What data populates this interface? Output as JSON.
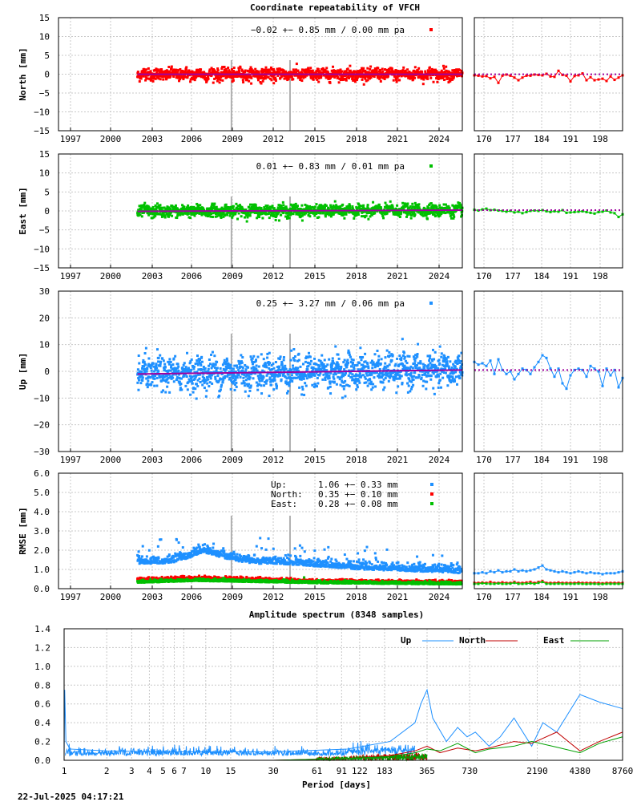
{
  "figure": {
    "title": "Coordinate repeatability of VFCH",
    "timestamp": "22-Jul-2025 04:17:21"
  },
  "colors": {
    "north": "#ff0000",
    "east": "#00c000",
    "up": "#1e90ff",
    "model": "#a000a0",
    "event": "#b0b0b0",
    "grid": "#c8c8c8"
  },
  "chart_data": [
    {
      "id": "north",
      "type": "scatter",
      "title": "Coordinate repeatability of VFCH",
      "ylabel": "North [mm]",
      "xlabel": "",
      "ylim": [
        -15,
        15
      ],
      "yticks": [
        "15",
        "10",
        "5",
        "0",
        "−5",
        "−10",
        "−15"
      ],
      "xticks": [
        "1997",
        "2000",
        "2003",
        "2006",
        "2009",
        "2012",
        "2015",
        "2018",
        "2021",
        "2024"
      ],
      "xlim": [
        1995.9,
        2025.55
      ],
      "legend": "−0.02 +− 0.85 mm /  0.00 mm pa",
      "data_start": 2001.7,
      "data_end": 2025.55,
      "scatter_sd": 0.85,
      "trend": [
        -0.02,
        -0.02
      ],
      "events": [
        2008.6,
        2012.9
      ],
      "zoom": {
        "xticks": [
          "170",
          "177",
          "184",
          "191",
          "198"
        ],
        "day_range": [
          166,
          203
        ],
        "values": [
          -0.3,
          -0.4,
          -0.6,
          -0.5,
          -1.1,
          -0.7,
          -2.3,
          -0.4,
          -0.1,
          -0.4,
          -0.9,
          -1.6,
          -0.9,
          -0.4,
          -0.4,
          -0.1,
          -0.2,
          -0.3,
          0.1,
          -0.6,
          -0.7,
          0.9,
          -0.2,
          -0.4,
          -1.9,
          -0.5,
          -0.3,
          0.2,
          -1.6,
          -0.8,
          -1.6,
          -1.4,
          -1.2,
          -1.8,
          -0.6,
          -1.5,
          -0.9,
          -0.3
        ]
      }
    },
    {
      "id": "east",
      "type": "scatter",
      "ylabel": "East [mm]",
      "xlabel": "",
      "ylim": [
        -15,
        15
      ],
      "yticks": [
        "15",
        "10",
        "5",
        "0",
        "−5",
        "−10",
        "−15"
      ],
      "xticks": [
        "1997",
        "2000",
        "2003",
        "2006",
        "2009",
        "2012",
        "2015",
        "2018",
        "2021",
        "2024"
      ],
      "xlim": [
        1995.9,
        2025.55
      ],
      "legend": "0.01 +− 0.83 mm /  0.01 mm pa",
      "data_start": 2001.7,
      "data_end": 2025.55,
      "scatter_sd": 0.83,
      "trend": [
        -0.1,
        0.2
      ],
      "events": [
        2008.6,
        2012.9
      ],
      "zoom": {
        "xticks": [
          "170",
          "177",
          "184",
          "191",
          "198"
        ],
        "day_range": [
          166,
          203
        ],
        "values": [
          0.3,
          0.1,
          0.4,
          0.6,
          0.2,
          0.3,
          0.1,
          0.0,
          -0.2,
          0.0,
          -0.4,
          -0.2,
          -0.6,
          -0.3,
          0.0,
          0.1,
          0.0,
          0.2,
          -0.1,
          -0.3,
          -0.1,
          -0.2,
          0.2,
          -0.5,
          -0.4,
          -0.3,
          -0.2,
          -0.1,
          -0.3,
          -0.5,
          -0.7,
          -0.3,
          -0.2,
          0.1,
          -0.4,
          -0.6,
          -1.6,
          -0.9
        ]
      }
    },
    {
      "id": "up",
      "type": "scatter",
      "ylabel": "Up [mm]",
      "xlabel": "",
      "ylim": [
        -30,
        30
      ],
      "yticks": [
        "30",
        "20",
        "10",
        "0",
        "−10",
        "−20",
        "−30"
      ],
      "xticks": [
        "1997",
        "2000",
        "2003",
        "2006",
        "2009",
        "2012",
        "2015",
        "2018",
        "2021",
        "2024"
      ],
      "xlim": [
        1995.9,
        2025.55
      ],
      "legend": "0.25 +− 3.27 mm /  0.06 mm pa",
      "data_start": 2001.7,
      "data_end": 2025.55,
      "scatter_sd": 3.27,
      "trend": [
        -1.0,
        0.5
      ],
      "events": [
        2008.6,
        2012.9
      ],
      "zoom": {
        "xticks": [
          "170",
          "177",
          "184",
          "191",
          "198"
        ],
        "day_range": [
          166,
          203
        ],
        "values": [
          3.5,
          2.5,
          3.0,
          2.0,
          4.0,
          -1.0,
          4.5,
          0.5,
          -1.0,
          0.0,
          -3.0,
          -1.0,
          1.0,
          0.5,
          -1.0,
          1.5,
          3.5,
          6.0,
          5.0,
          1.0,
          -2.0,
          1.0,
          -4.5,
          -6.5,
          -1.5,
          0.5,
          1.0,
          0.5,
          -2.0,
          2.0,
          1.0,
          0.0,
          -5.5,
          1.0,
          -1.5,
          0.5,
          -6.0,
          -2.5
        ]
      }
    },
    {
      "id": "rmse",
      "type": "scatter",
      "ylabel": "RMSE [mm]",
      "xlabel": "",
      "ylim": [
        0,
        6
      ],
      "yticks": [
        "6.0",
        "5.0",
        "4.0",
        "3.0",
        "2.0",
        "1.0",
        "0.0"
      ],
      "xticks": [
        "1997",
        "2000",
        "2003",
        "2006",
        "2009",
        "2012",
        "2015",
        "2018",
        "2021",
        "2024"
      ],
      "xlim": [
        1995.9,
        2025.55
      ],
      "events": [
        2008.6,
        2012.9
      ],
      "legend": [
        {
          "name": "Up:",
          "text": "1.06 +− 0.33 mm",
          "color": "#1e90ff"
        },
        {
          "name": "North:",
          "text": "0.35 +− 0.10 mm",
          "color": "#ff0000"
        },
        {
          "name": "East:",
          "text": "0.28 +− 0.08 mm",
          "color": "#00c000"
        }
      ],
      "series": [
        {
          "name": "Up",
          "color": "#1e90ff",
          "x": [
            2001.7,
            2004,
            2005.5,
            2006.5,
            2007.5,
            2008.5,
            2010,
            2012,
            2014,
            2016,
            2018,
            2020,
            2022,
            2024,
            2025.5
          ],
          "y": [
            1.3,
            1.3,
            1.6,
            1.9,
            1.7,
            1.5,
            1.3,
            1.3,
            1.2,
            1.1,
            1.0,
            0.95,
            0.9,
            0.85,
            0.8
          ]
        },
        {
          "name": "North",
          "color": "#ff0000",
          "x": [
            2001.7,
            2006,
            2010,
            2015,
            2020,
            2025.5
          ],
          "y": [
            0.45,
            0.5,
            0.45,
            0.35,
            0.33,
            0.3
          ]
        },
        {
          "name": "East",
          "color": "#00c000",
          "x": [
            2001.7,
            2006,
            2010,
            2015,
            2020,
            2025.5
          ],
          "y": [
            0.3,
            0.4,
            0.35,
            0.28,
            0.25,
            0.22
          ]
        }
      ],
      "zoom": {
        "xticks": [
          "170",
          "177",
          "184",
          "191",
          "198"
        ],
        "day_range": [
          166,
          203
        ],
        "up": [
          0.8,
          0.8,
          0.85,
          0.8,
          0.9,
          0.85,
          0.95,
          0.85,
          0.9,
          0.9,
          1.0,
          0.9,
          0.95,
          0.9,
          0.95,
          1.0,
          1.1,
          1.2,
          1.0,
          0.95,
          0.9,
          0.85,
          0.9,
          0.85,
          0.8,
          0.85,
          0.9,
          0.85,
          0.8,
          0.85,
          0.8,
          0.8,
          0.75,
          0.8,
          0.8,
          0.8,
          0.85,
          0.9
        ],
        "north": [
          0.3,
          0.3,
          0.32,
          0.3,
          0.35,
          0.3,
          0.3,
          0.33,
          0.3,
          0.3,
          0.35,
          0.3,
          0.3,
          0.32,
          0.35,
          0.3,
          0.35,
          0.4,
          0.3,
          0.3,
          0.3,
          0.32,
          0.3,
          0.3,
          0.3,
          0.3,
          0.32,
          0.3,
          0.3,
          0.3,
          0.3,
          0.3,
          0.28,
          0.3,
          0.3,
          0.3,
          0.3,
          0.3
        ],
        "east": [
          0.25,
          0.25,
          0.28,
          0.26,
          0.25,
          0.25,
          0.27,
          0.25,
          0.25,
          0.26,
          0.3,
          0.25,
          0.25,
          0.26,
          0.28,
          0.25,
          0.3,
          0.35,
          0.25,
          0.25,
          0.25,
          0.26,
          0.25,
          0.25,
          0.25,
          0.25,
          0.26,
          0.25,
          0.24,
          0.25,
          0.25,
          0.24,
          0.24,
          0.25,
          0.25,
          0.25,
          0.25,
          0.25
        ]
      }
    },
    {
      "id": "spectrum",
      "type": "line",
      "title": "Amplitude spectrum (8348 samples)",
      "xlabel": "Period [days]",
      "ylabel": "",
      "xscale": "log",
      "xlim": [
        1,
        8760
      ],
      "ylim": [
        0,
        1.4
      ],
      "yticks": [
        "1.4",
        "1.2",
        "1.0",
        "0.8",
        "0.6",
        "0.4",
        "0.2",
        "0.0"
      ],
      "xticks": [
        {
          "v": 1,
          "label": "1"
        },
        {
          "v": 2,
          "label": "2"
        },
        {
          "v": 3,
          "label": "3"
        },
        {
          "v": 4,
          "label": "4"
        },
        {
          "v": 5,
          "label": "5"
        },
        {
          "v": 6,
          "label": "6"
        },
        {
          "v": 7,
          "label": "7"
        },
        {
          "v": 10,
          "label": "10"
        },
        {
          "v": 15,
          "label": "15"
        },
        {
          "v": 30,
          "label": "30"
        },
        {
          "v": 61,
          "label": "61"
        },
        {
          "v": 91,
          "label": "91"
        },
        {
          "v": 122,
          "label": "122"
        },
        {
          "v": 183,
          "label": "183"
        },
        {
          "v": 365,
          "label": "365"
        },
        {
          "v": 730,
          "label": "730"
        },
        {
          "v": 2190,
          "label": "2190"
        },
        {
          "v": 4380,
          "label": "4380"
        },
        {
          "v": 8760,
          "label": "8760"
        }
      ],
      "series": [
        {
          "name": "Up",
          "color": "#1e90ff",
          "x": [
            1,
            1.01,
            1.03,
            1.1,
            2,
            5,
            10,
            30,
            100,
            200,
            300,
            330,
            365,
            400,
            500,
            600,
            700,
            800,
            1000,
            1200,
            1500,
            2000,
            2400,
            3000,
            4380,
            6000,
            8760
          ],
          "y": [
            0.05,
            0.75,
            0.2,
            0.12,
            0.1,
            0.09,
            0.09,
            0.09,
            0.12,
            0.2,
            0.4,
            0.6,
            0.75,
            0.45,
            0.2,
            0.35,
            0.25,
            0.3,
            0.15,
            0.25,
            0.45,
            0.15,
            0.4,
            0.3,
            0.7,
            0.62,
            0.55
          ]
        },
        {
          "name": "North",
          "color": "#c00000",
          "x": [
            1,
            30,
            100,
            200,
            300,
            365,
            450,
            600,
            800,
            1000,
            1500,
            2000,
            3000,
            4380,
            6000,
            8760
          ],
          "y": [
            0.0,
            0.0,
            0.02,
            0.05,
            0.1,
            0.15,
            0.08,
            0.13,
            0.1,
            0.13,
            0.2,
            0.18,
            0.3,
            0.1,
            0.2,
            0.3
          ]
        },
        {
          "name": "East",
          "color": "#00a000",
          "x": [
            1,
            30,
            100,
            200,
            300,
            365,
            450,
            600,
            800,
            1000,
            1500,
            2000,
            3000,
            4380,
            6000,
            8760
          ],
          "y": [
            0.0,
            0.0,
            0.02,
            0.04,
            0.08,
            0.12,
            0.1,
            0.18,
            0.08,
            0.12,
            0.15,
            0.2,
            0.14,
            0.08,
            0.18,
            0.25
          ]
        }
      ]
    }
  ]
}
